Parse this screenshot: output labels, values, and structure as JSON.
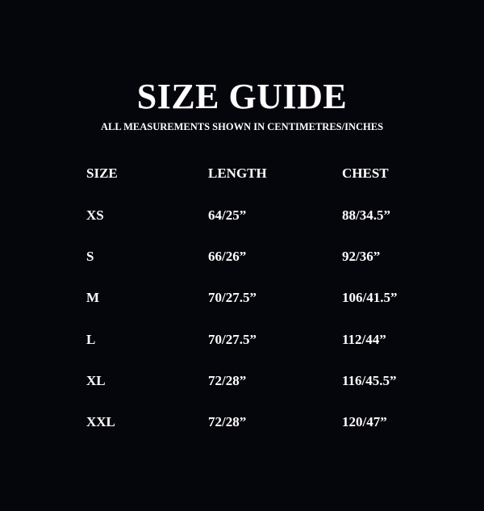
{
  "title": "SIZE GUIDE",
  "subtitle": "ALL MEASUREMENTS SHOWN IN CENTIMETRES/INCHES",
  "colors": {
    "background": "#05050c",
    "text": "#ffffff"
  },
  "table": {
    "headers": [
      "SIZE",
      "LENGTH",
      "CHEST"
    ],
    "rows": [
      [
        "XS",
        "64/25”",
        "88/34.5”"
      ],
      [
        "S",
        "66/26”",
        "92/36”"
      ],
      [
        "M",
        "70/27.5”",
        "106/41.5”"
      ],
      [
        "L",
        "70/27.5”",
        "112/44”"
      ],
      [
        "XL",
        "72/28”",
        "116/45.5”"
      ],
      [
        "XXL",
        "72/28”",
        "120/47”"
      ]
    ]
  }
}
